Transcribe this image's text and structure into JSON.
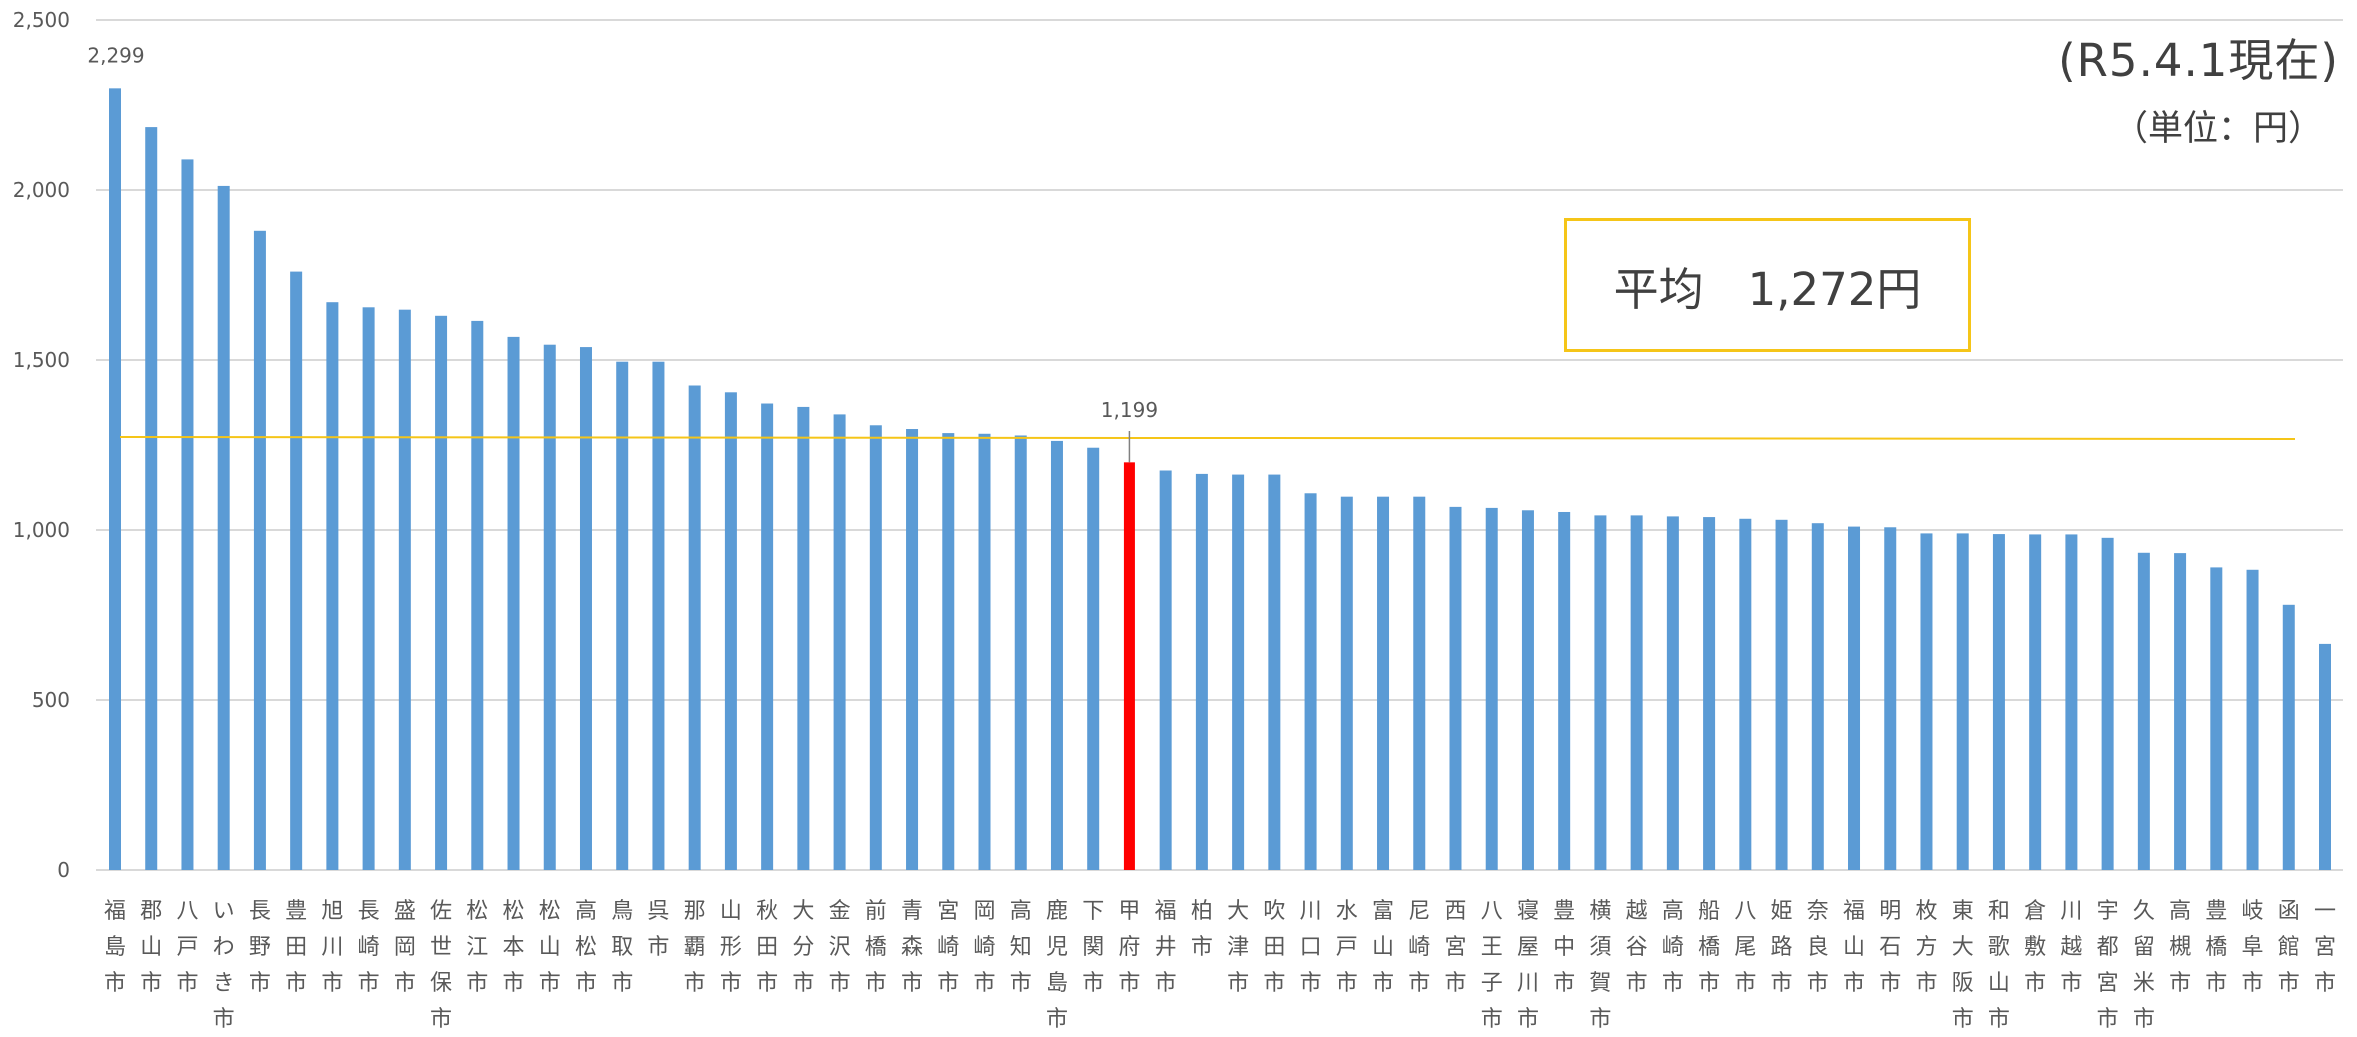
{
  "note": {
    "as_of": "(R5.4.1現在)",
    "unit": "（単位：円）"
  },
  "average_box": {
    "label": "平均",
    "value_text": "1,272円"
  },
  "colors": {
    "bar": "#5b9bd5",
    "highlight_bar": "#ff0000",
    "average_line": "#f5c518",
    "grid": "#d9d9d9",
    "text": "#595959"
  },
  "chart_data": {
    "type": "bar",
    "title": "",
    "xlabel": "",
    "ylabel": "",
    "ylim": [
      0,
      2500
    ],
    "yticks": [
      0,
      500,
      1000,
      1500,
      2000,
      2500
    ],
    "ytick_labels": [
      "0",
      "500",
      "1,000",
      "1,500",
      "2,000",
      "2,500"
    ],
    "grid": true,
    "legend": "none",
    "average": 1272,
    "highlight": "甲府市",
    "data_labels": [
      {
        "category": "福島市",
        "text": "2,299"
      },
      {
        "category": "甲府市",
        "text": "1,199"
      }
    ],
    "categories": [
      "福島市",
      "郡山市",
      "八戸市",
      "いわき市",
      "長野市",
      "豊田市",
      "旭川市",
      "長崎市",
      "盛岡市",
      "佐世保市",
      "松江市",
      "松本市",
      "松山市",
      "高松市",
      "鳥取市",
      "呉市",
      "那覇市",
      "山形市",
      "秋田市",
      "大分市",
      "金沢市",
      "前橋市",
      "青森市",
      "宮崎市",
      "岡崎市",
      "高知市",
      "鹿児島市",
      "下関市",
      "甲府市",
      "福井市",
      "柏市",
      "大津市",
      "吹田市",
      "川口市",
      "水戸市",
      "富山市",
      "尼崎市",
      "西宮市",
      "八王子市",
      "寝屋川市",
      "豊中市",
      "横須賀市",
      "越谷市",
      "高崎市",
      "船橋市",
      "八尾市",
      "姫路市",
      "奈良市",
      "福山市",
      "明石市",
      "枚方市",
      "東大阪市",
      "和歌山市",
      "倉敷市",
      "川越市",
      "宇都宮市",
      "久留米市",
      "高槻市",
      "豊橋市",
      "岐阜市",
      "函館市",
      "一宮市"
    ],
    "values": [
      2299,
      2185,
      2090,
      2012,
      1880,
      1760,
      1670,
      1655,
      1648,
      1630,
      1615,
      1568,
      1545,
      1538,
      1495,
      1495,
      1425,
      1405,
      1372,
      1362,
      1340,
      1308,
      1297,
      1285,
      1283,
      1278,
      1262,
      1242,
      1199,
      1175,
      1165,
      1163,
      1163,
      1108,
      1098,
      1098,
      1098,
      1068,
      1065,
      1058,
      1053,
      1043,
      1043,
      1040,
      1038,
      1033,
      1030,
      1020,
      1010,
      1008,
      990,
      990,
      988,
      987,
      987,
      977,
      933,
      932,
      890,
      883,
      780,
      665
    ]
  }
}
